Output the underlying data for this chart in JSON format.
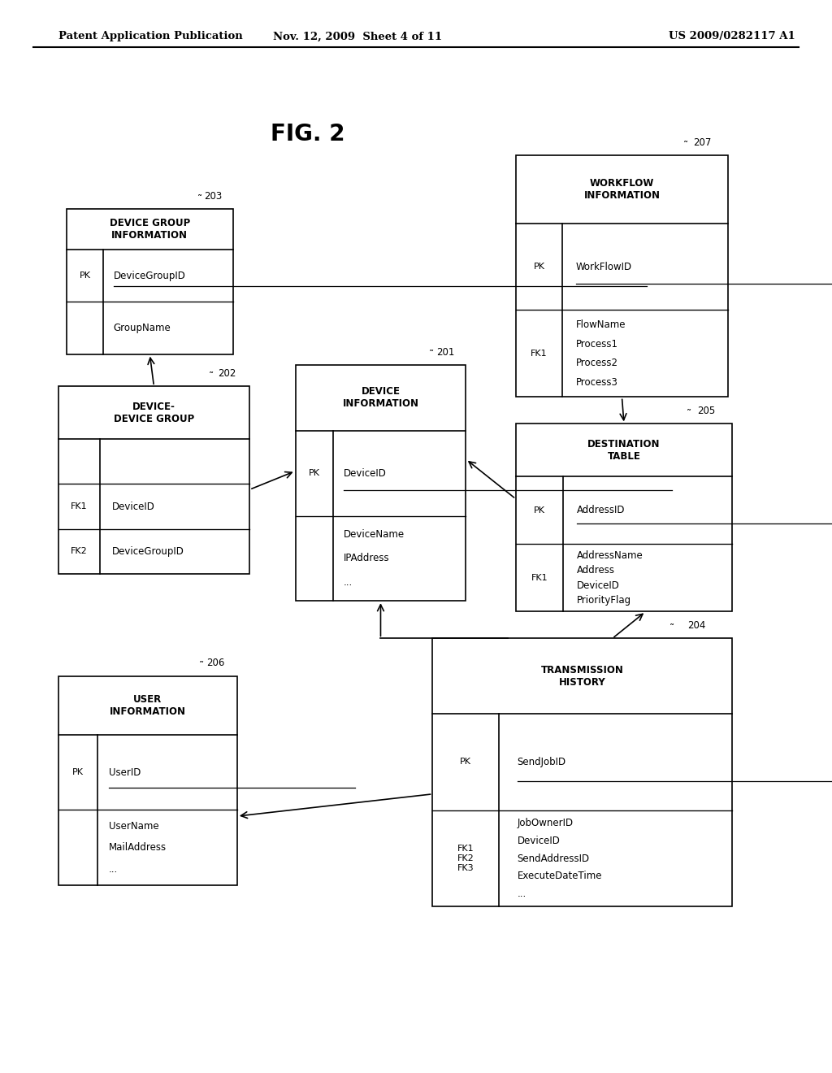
{
  "header_left": "Patent Application Publication",
  "header_mid": "Nov. 12, 2009  Sheet 4 of 11",
  "header_right": "US 2009/0282117 A1",
  "fig_label": "FIG. 2",
  "background": "#ffffff"
}
